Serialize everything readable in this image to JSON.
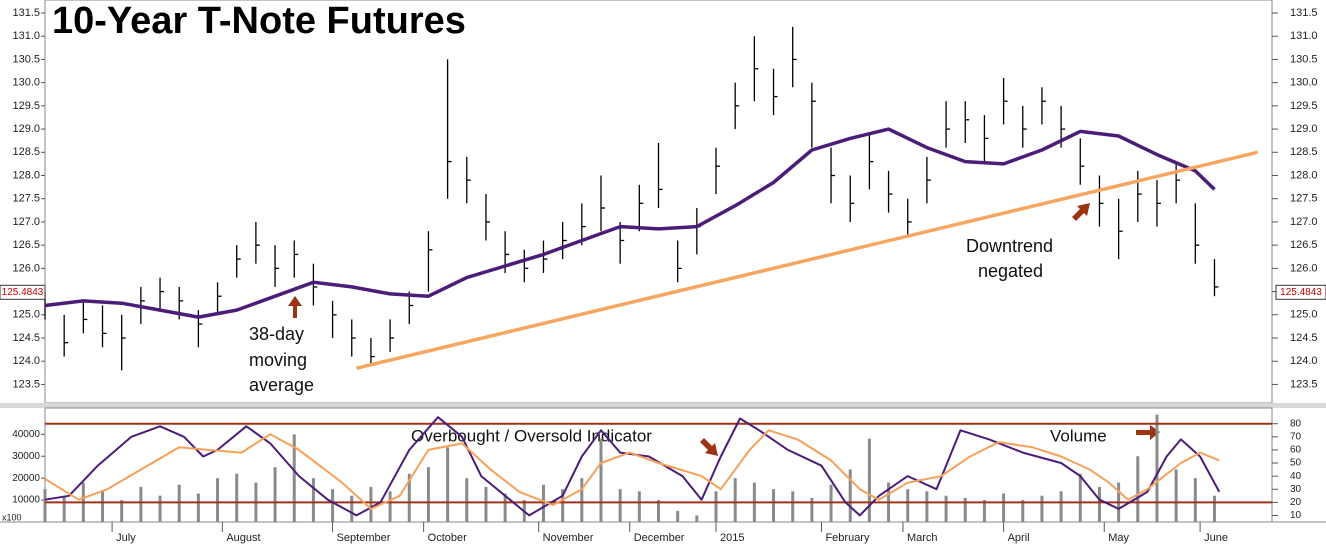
{
  "chart_data": [
    {
      "type": "ohlc",
      "title": "10-Year T-Note Futures",
      "x": [
        0,
        4,
        8,
        12,
        16,
        20,
        24,
        28,
        32,
        36,
        40,
        44,
        48,
        52,
        56,
        60,
        64,
        68,
        72,
        76,
        80,
        84,
        88,
        92,
        96,
        100,
        104,
        108,
        112,
        116,
        120,
        124,
        128,
        132,
        136,
        140,
        144,
        148,
        152,
        156,
        160,
        164,
        168,
        172,
        176,
        180,
        184,
        188,
        192,
        196,
        200,
        204,
        208,
        212,
        216,
        220,
        224,
        228,
        232,
        236,
        240,
        244
      ],
      "high": [
        125.5,
        125.0,
        125.3,
        125.2,
        125.0,
        125.6,
        125.8,
        125.6,
        125.1,
        125.7,
        126.5,
        127.0,
        126.5,
        126.6,
        126.1,
        125.3,
        124.9,
        124.5,
        124.9,
        125.5,
        126.8,
        130.5,
        128.4,
        127.6,
        126.8,
        126.4,
        126.6,
        127.0,
        127.4,
        128.0,
        127.0,
        127.8,
        128.7,
        126.6,
        127.3,
        128.6,
        130.0,
        131.0,
        130.3,
        131.2,
        130.0,
        128.6,
        128.0,
        128.9,
        128.1,
        127.5,
        128.4,
        129.6,
        129.6,
        129.3,
        130.1,
        129.5,
        129.9,
        129.5,
        128.8,
        128.0,
        127.5,
        128.1,
        127.9,
        128.3,
        127.4,
        126.2
      ],
      "low": [
        124.9,
        124.1,
        124.6,
        124.3,
        123.8,
        124.8,
        125.1,
        124.9,
        124.3,
        125.0,
        125.8,
        126.1,
        125.6,
        125.8,
        125.2,
        124.5,
        124.1,
        123.9,
        124.2,
        124.8,
        125.5,
        127.5,
        127.4,
        126.6,
        125.9,
        125.7,
        125.9,
        126.2,
        126.5,
        126.8,
        126.1,
        126.8,
        127.3,
        125.7,
        126.3,
        127.6,
        129.0,
        129.6,
        129.3,
        129.9,
        128.6,
        127.4,
        127.0,
        127.7,
        127.2,
        126.7,
        127.4,
        128.6,
        128.7,
        128.3,
        129.1,
        128.6,
        129.1,
        128.6,
        127.8,
        126.9,
        126.2,
        127.0,
        126.9,
        127.4,
        126.1,
        125.4
      ],
      "close": [
        125.2,
        124.4,
        124.9,
        124.6,
        124.5,
        125.3,
        125.5,
        125.3,
        124.8,
        125.4,
        126.2,
        126.5,
        126.0,
        126.3,
        125.6,
        125.0,
        124.5,
        124.1,
        124.5,
        125.2,
        126.4,
        128.3,
        127.9,
        127.0,
        126.3,
        126.0,
        126.2,
        126.6,
        126.9,
        127.3,
        126.6,
        127.4,
        127.7,
        126.0,
        126.9,
        128.2,
        129.5,
        130.3,
        129.7,
        130.5,
        129.6,
        128.0,
        127.4,
        128.3,
        127.6,
        127.0,
        127.9,
        129.0,
        129.2,
        128.8,
        129.6,
        129.0,
        129.6,
        129.0,
        128.2,
        127.4,
        126.8,
        127.6,
        127.4,
        127.9,
        126.5,
        125.6
      ],
      "color": "#000000",
      "overlays": [
        {
          "color": "#4b1d78",
          "x": [
            0,
            8,
            16,
            24,
            32,
            40,
            48,
            56,
            64,
            72,
            80,
            88,
            96,
            104,
            112,
            120,
            128,
            136,
            144,
            152,
            160,
            168,
            176,
            184,
            192,
            200,
            208,
            216,
            224,
            232,
            240,
            244
          ],
          "values": [
            125.2,
            125.3,
            125.25,
            125.1,
            124.95,
            125.1,
            125.4,
            125.7,
            125.6,
            125.45,
            125.4,
            125.8,
            126.05,
            126.3,
            126.6,
            126.9,
            126.85,
            126.9,
            127.35,
            127.85,
            128.55,
            128.8,
            129.0,
            128.6,
            128.3,
            128.25,
            128.55,
            128.95,
            128.85,
            128.45,
            128.1,
            127.7
          ]
        },
        {
          "color": "#f6a660",
          "x": [
            65,
            253
          ],
          "values": [
            123.85,
            128.5
          ]
        }
      ],
      "last_value": 125.4843,
      "last_value_color": "#cc0000",
      "xlim": [
        0,
        256
      ],
      "ylim": [
        123.1,
        131.78
      ],
      "yticks": [
        123.5,
        {
          "value": 124,
          "label": "124.0"
        },
        124.5,
        {
          "value": 125,
          "label": "125.0"
        },
        125.5,
        {
          "value": 126,
          "label": "126.0"
        },
        126.5,
        {
          "value": 127,
          "label": "127.0"
        },
        127.5,
        {
          "value": 128,
          "label": "128.0"
        },
        128.5,
        {
          "value": 129,
          "label": "129.0"
        },
        129.5,
        {
          "value": 130,
          "label": "130.0"
        },
        130.5,
        {
          "value": 131,
          "label": "131.0"
        },
        131.5
      ],
      "annotations": [
        [
          "38-day",
          "moving",
          "average"
        ],
        [
          "Downtrend",
          "negated"
        ]
      ]
    },
    {
      "type": "indicator",
      "x": [
        0,
        4,
        8,
        12,
        16,
        20,
        24,
        28,
        32,
        36,
        40,
        44,
        48,
        52,
        56,
        60,
        64,
        68,
        72,
        76,
        80,
        84,
        88,
        92,
        96,
        100,
        104,
        108,
        112,
        116,
        120,
        124,
        128,
        132,
        136,
        140,
        144,
        148,
        152,
        156,
        160,
        164,
        168,
        172,
        176,
        180,
        184,
        188,
        192,
        196,
        200,
        204,
        208,
        212,
        216,
        220,
        224,
        228,
        232,
        236,
        240,
        244
      ],
      "volume": [
        15000,
        12000,
        18000,
        14000,
        10000,
        16000,
        12000,
        17000,
        13000,
        20000,
        22000,
        18000,
        25000,
        40000,
        20000,
        15000,
        12000,
        16000,
        14000,
        22000,
        25000,
        34000,
        20000,
        16000,
        13000,
        10000,
        17000,
        15000,
        20000,
        38000,
        15000,
        14000,
        10000,
        5000,
        3000,
        14000,
        20000,
        18000,
        15000,
        14000,
        11000,
        17000,
        24000,
        38000,
        18000,
        15000,
        14000,
        12000,
        11000,
        10000,
        13000,
        10000,
        12000,
        14000,
        22000,
        16000,
        18000,
        30000,
        49000,
        24000,
        20000,
        12000
      ],
      "volume_color": "#8a8a8a",
      "volume_unit_label": "x100",
      "oscillators": [
        {
          "color": "#4b1d78",
          "x": [
            0,
            5,
            11,
            18,
            24,
            29,
            33,
            36,
            42,
            47,
            53,
            59,
            65,
            70,
            76,
            82,
            87,
            91,
            97,
            101,
            108,
            112,
            116,
            120,
            126,
            133,
            137,
            141,
            145,
            149,
            155,
            162,
            167,
            170,
            174,
            180,
            186,
            191,
            197,
            204,
            212,
            216,
            220,
            224,
            230,
            234,
            237,
            241,
            245
          ],
          "values": [
            22,
            25,
            48,
            70,
            78,
            70,
            55,
            60,
            78,
            65,
            40,
            22,
            10,
            20,
            60,
            85,
            70,
            40,
            22,
            10,
            25,
            55,
            75,
            58,
            55,
            40,
            22,
            55,
            84,
            75,
            60,
            48,
            20,
            10,
            25,
            40,
            30,
            75,
            68,
            58,
            50,
            40,
            22,
            15,
            28,
            55,
            68,
            55,
            28
          ]
        },
        {
          "color": "#f6a05a",
          "x": [
            0,
            7,
            13,
            20,
            28,
            34,
            41,
            47,
            53,
            62,
            68,
            74,
            80,
            87,
            93,
            99,
            106,
            112,
            116,
            122,
            128,
            137,
            141,
            147,
            151,
            157,
            164,
            170,
            174,
            180,
            187,
            193,
            199,
            206,
            212,
            218,
            222,
            226,
            230,
            237,
            241,
            245
          ],
          "values": [
            38,
            22,
            30,
            45,
            62,
            60,
            58,
            72,
            60,
            35,
            15,
            25,
            60,
            65,
            45,
            28,
            18,
            30,
            50,
            58,
            50,
            40,
            30,
            60,
            75,
            68,
            52,
            30,
            22,
            35,
            40,
            55,
            66,
            62,
            55,
            45,
            35,
            22,
            30,
            50,
            58,
            52
          ]
        }
      ],
      "reference_lines": [
        80,
        20
      ],
      "reference_color": "#a0341a",
      "xlim": [
        0,
        256
      ],
      "ylim": [
        0,
        52000
      ],
      "yticks": [
        10000,
        20000,
        30000,
        40000
      ],
      "y2lim": [
        5,
        92
      ],
      "y2ticks": [
        10,
        20,
        30,
        40,
        50,
        60,
        70,
        80
      ],
      "xticks": [
        {
          "value": 14,
          "label": "July"
        },
        {
          "value": 37,
          "label": "August"
        },
        {
          "value": 60,
          "label": "September"
        },
        {
          "value": 79,
          "label": "October"
        },
        {
          "value": 103,
          "label": "November"
        },
        {
          "value": 122,
          "label": "December"
        },
        {
          "value": 140,
          "label": "2015"
        },
        {
          "value": 162,
          "label": "February"
        },
        {
          "value": 179,
          "label": "March"
        },
        {
          "value": 200,
          "label": "April"
        },
        {
          "value": 221,
          "label": "May"
        },
        {
          "value": 241,
          "label": "June"
        }
      ],
      "annotations": [
        "Overbought / Oversold Indicator",
        "Volume"
      ]
    }
  ]
}
